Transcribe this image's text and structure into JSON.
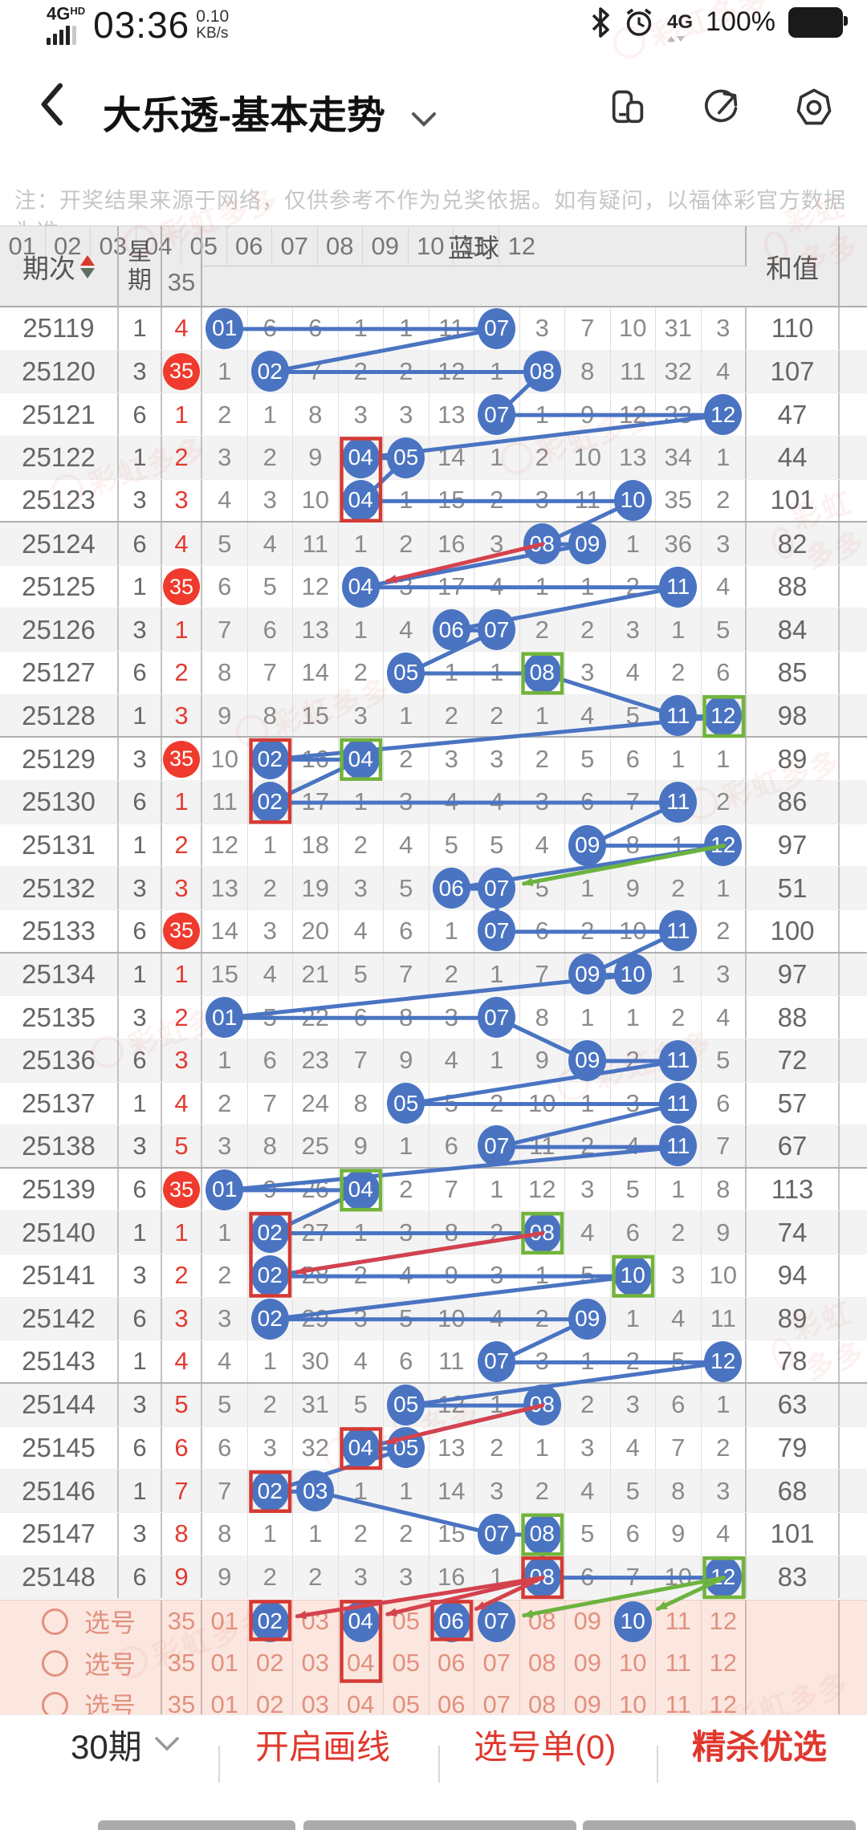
{
  "statusbar": {
    "network": "4G",
    "hd": "HD",
    "time": "03:36",
    "speed": "0.10",
    "speed_unit": "KB/s",
    "network2": "4G",
    "battery_pct": "100%"
  },
  "nav": {
    "title": "大乐透-基本走势"
  },
  "icons": {
    "back": "chevron-left",
    "title_dropdown": "chevron-down",
    "nav_right": [
      "split-screen-icon",
      "share-icon",
      "settings-icon"
    ],
    "statusbar_right": [
      "bluetooth-icon",
      "alarm-clock-icon",
      "battery-icon"
    ],
    "sort": "sort-arrows",
    "pick_radio": "circle-outline",
    "periods_dropdown": "chevron-down"
  },
  "notice": {
    "text": "注：开奖结果来源于网络，仅供参考不作为兑奖依据。如有疑问，以福体彩官方数据为准。"
  },
  "colors": {
    "ball_blue": "#4a74c2",
    "red": "#e23b30",
    "box_red": "#d43a34",
    "box_green": "#72b33c",
    "arrow_red": "#d4424d",
    "arrow_green": "#6cb33f",
    "pick_bg": "#fbe7e0",
    "pick_text": "#e2917f"
  },
  "table": {
    "header": {
      "period": "期次",
      "week": "星期",
      "group": "蓝球",
      "sum": "和值"
    },
    "columns": [
      "35",
      "01",
      "02",
      "03",
      "04",
      "05",
      "06",
      "07",
      "08",
      "09",
      "10",
      "11",
      "12"
    ],
    "rows": [
      {
        "period": "25119",
        "week": "1",
        "m35": "4",
        "balls": [
          1,
          7
        ],
        "cells": [
          null,
          "6",
          "6",
          "1",
          "1",
          "11",
          null,
          "3",
          "7",
          "10",
          "31",
          "3"
        ],
        "sum": "110"
      },
      {
        "period": "25120",
        "week": "3",
        "m35": "35",
        "balls": [
          2,
          8
        ],
        "cells": [
          "1",
          null,
          "7",
          "2",
          "2",
          "12",
          "1",
          null,
          "8",
          "11",
          "32",
          "4"
        ],
        "sum": "107"
      },
      {
        "period": "25121",
        "week": "6",
        "m35": "1",
        "balls": [
          7,
          12
        ],
        "cells": [
          "2",
          "1",
          "8",
          "3",
          "3",
          "13",
          null,
          "1",
          "9",
          "12",
          "33",
          null
        ],
        "sum": "47"
      },
      {
        "period": "25122",
        "week": "1",
        "m35": "2",
        "balls": [
          4,
          5
        ],
        "cells": [
          "3",
          "2",
          "9",
          null,
          null,
          "14",
          "1",
          "2",
          "10",
          "13",
          "34",
          "1"
        ],
        "sum": "44"
      },
      {
        "period": "25123",
        "week": "3",
        "m35": "3",
        "balls": [
          4,
          10
        ],
        "cells": [
          "4",
          "3",
          "10",
          null,
          "1",
          "15",
          "2",
          "3",
          "11",
          null,
          "35",
          "2"
        ],
        "sum": "101"
      },
      {
        "period": "25124",
        "week": "6",
        "m35": "4",
        "balls": [
          8,
          9
        ],
        "cells": [
          "5",
          "4",
          "11",
          "1",
          "2",
          "16",
          "3",
          null,
          null,
          "1",
          "36",
          "3"
        ],
        "sum": "82"
      },
      {
        "period": "25125",
        "week": "1",
        "m35": "35",
        "balls": [
          4,
          11
        ],
        "cells": [
          "6",
          "5",
          "12",
          null,
          "3",
          "17",
          "4",
          "1",
          "1",
          "2",
          null,
          "4"
        ],
        "sum": "88"
      },
      {
        "period": "25126",
        "week": "3",
        "m35": "1",
        "balls": [
          6,
          7
        ],
        "cells": [
          "7",
          "6",
          "13",
          "1",
          "4",
          null,
          null,
          "2",
          "2",
          "3",
          "1",
          "5"
        ],
        "sum": "84"
      },
      {
        "period": "25127",
        "week": "6",
        "m35": "2",
        "balls": [
          5,
          8
        ],
        "cells": [
          "8",
          "7",
          "14",
          "2",
          null,
          "1",
          "1",
          null,
          "3",
          "4",
          "2",
          "6"
        ],
        "sum": "85"
      },
      {
        "period": "25128",
        "week": "1",
        "m35": "3",
        "balls": [
          11,
          12
        ],
        "cells": [
          "9",
          "8",
          "15",
          "3",
          "1",
          "2",
          "2",
          "1",
          "4",
          "5",
          null,
          null
        ],
        "sum": "98"
      },
      {
        "period": "25129",
        "week": "3",
        "m35": "35",
        "balls": [
          2,
          4
        ],
        "cells": [
          "10",
          null,
          "16",
          null,
          "2",
          "3",
          "3",
          "2",
          "5",
          "6",
          "1",
          "1"
        ],
        "sum": "89"
      },
      {
        "period": "25130",
        "week": "6",
        "m35": "1",
        "balls": [
          2,
          11
        ],
        "cells": [
          "11",
          null,
          "17",
          "1",
          "3",
          "4",
          "4",
          "3",
          "6",
          "7",
          null,
          "2"
        ],
        "sum": "86"
      },
      {
        "period": "25131",
        "week": "1",
        "m35": "2",
        "balls": [
          9,
          12
        ],
        "cells": [
          "12",
          "1",
          "18",
          "2",
          "4",
          "5",
          "5",
          "4",
          null,
          "8",
          "1",
          null
        ],
        "sum": "97"
      },
      {
        "period": "25132",
        "week": "3",
        "m35": "3",
        "balls": [
          6,
          7
        ],
        "cells": [
          "13",
          "2",
          "19",
          "3",
          "5",
          null,
          null,
          "5",
          "1",
          "9",
          "2",
          "1"
        ],
        "sum": "51"
      },
      {
        "period": "25133",
        "week": "6",
        "m35": "35",
        "balls": [
          7,
          11
        ],
        "cells": [
          "14",
          "3",
          "20",
          "4",
          "6",
          "1",
          null,
          "6",
          "2",
          "10",
          null,
          "2"
        ],
        "sum": "100"
      },
      {
        "period": "25134",
        "week": "1",
        "m35": "1",
        "balls": [
          9,
          10
        ],
        "cells": [
          "15",
          "4",
          "21",
          "5",
          "7",
          "2",
          "1",
          "7",
          null,
          null,
          "1",
          "3"
        ],
        "sum": "97"
      },
      {
        "period": "25135",
        "week": "3",
        "m35": "2",
        "balls": [
          1,
          7
        ],
        "cells": [
          null,
          "5",
          "22",
          "6",
          "8",
          "3",
          null,
          "8",
          "1",
          "1",
          "2",
          "4"
        ],
        "sum": "88"
      },
      {
        "period": "25136",
        "week": "6",
        "m35": "3",
        "balls": [
          9,
          11
        ],
        "cells": [
          "1",
          "6",
          "23",
          "7",
          "9",
          "4",
          "1",
          "9",
          null,
          "2",
          null,
          "5"
        ],
        "sum": "72"
      },
      {
        "period": "25137",
        "week": "1",
        "m35": "4",
        "balls": [
          5,
          11
        ],
        "cells": [
          "2",
          "7",
          "24",
          "8",
          null,
          "5",
          "2",
          "10",
          "1",
          "3",
          null,
          "6"
        ],
        "sum": "57"
      },
      {
        "period": "25138",
        "week": "3",
        "m35": "5",
        "balls": [
          7,
          11
        ],
        "cells": [
          "3",
          "8",
          "25",
          "9",
          "1",
          "6",
          null,
          "11",
          "2",
          "4",
          null,
          "7"
        ],
        "sum": "67"
      },
      {
        "period": "25139",
        "week": "6",
        "m35": "35",
        "balls": [
          1,
          4
        ],
        "cells": [
          null,
          "9",
          "26",
          null,
          "2",
          "7",
          "1",
          "12",
          "3",
          "5",
          "1",
          "8"
        ],
        "sum": "113"
      },
      {
        "period": "25140",
        "week": "1",
        "m35": "1",
        "balls": [
          2,
          8
        ],
        "cells": [
          "1",
          null,
          "27",
          "1",
          "3",
          "8",
          "2",
          null,
          "4",
          "6",
          "2",
          "9"
        ],
        "sum": "74"
      },
      {
        "period": "25141",
        "week": "3",
        "m35": "2",
        "balls": [
          2,
          10
        ],
        "cells": [
          "2",
          null,
          "28",
          "2",
          "4",
          "9",
          "3",
          "1",
          "5",
          null,
          "3",
          "10"
        ],
        "sum": "94"
      },
      {
        "period": "25142",
        "week": "6",
        "m35": "3",
        "balls": [
          2,
          9
        ],
        "cells": [
          "3",
          null,
          "29",
          "3",
          "5",
          "10",
          "4",
          "2",
          null,
          "1",
          "4",
          "11"
        ],
        "sum": "89"
      },
      {
        "period": "25143",
        "week": "1",
        "m35": "4",
        "balls": [
          7,
          12
        ],
        "cells": [
          "4",
          "1",
          "30",
          "4",
          "6",
          "11",
          null,
          "3",
          "1",
          "2",
          "5",
          null
        ],
        "sum": "78"
      },
      {
        "period": "25144",
        "week": "3",
        "m35": "5",
        "balls": [
          5,
          8
        ],
        "cells": [
          "5",
          "2",
          "31",
          "5",
          null,
          "12",
          "1",
          null,
          "2",
          "3",
          "6",
          "1"
        ],
        "sum": "63"
      },
      {
        "period": "25145",
        "week": "6",
        "m35": "6",
        "balls": [
          4,
          5
        ],
        "cells": [
          "6",
          "3",
          "32",
          null,
          null,
          "13",
          "2",
          "1",
          "3",
          "4",
          "7",
          "2"
        ],
        "sum": "79"
      },
      {
        "period": "25146",
        "week": "1",
        "m35": "7",
        "balls": [
          2,
          3
        ],
        "cells": [
          "7",
          null,
          null,
          "1",
          "1",
          "14",
          "3",
          "2",
          "4",
          "5",
          "8",
          "3"
        ],
        "sum": "68"
      },
      {
        "period": "25147",
        "week": "3",
        "m35": "8",
        "balls": [
          7,
          8
        ],
        "cells": [
          "8",
          "1",
          "1",
          "2",
          "2",
          "15",
          null,
          null,
          "5",
          "6",
          "9",
          "4"
        ],
        "sum": "101"
      },
      {
        "period": "25148",
        "week": "6",
        "m35": "9",
        "balls": [
          8,
          12
        ],
        "cells": [
          "9",
          "2",
          "2",
          "3",
          "3",
          "16",
          "1",
          null,
          "6",
          "7",
          "10",
          null
        ],
        "sum": "83"
      }
    ]
  },
  "pick": {
    "label": "选号",
    "rows": [
      {
        "selected": [
          2,
          4,
          6,
          7,
          10
        ]
      },
      {
        "selected": []
      },
      {
        "selected": []
      }
    ]
  },
  "annotations": {
    "red_boxes": [
      {
        "col": 4,
        "rows": [
          "25122",
          "25123"
        ]
      },
      {
        "col": 2,
        "rows": [
          "25129",
          "25130"
        ]
      },
      {
        "col": 2,
        "rows": [
          "25140",
          "25141"
        ]
      },
      {
        "col": 4,
        "rows": [
          "25145"
        ]
      },
      {
        "col": 2,
        "rows": [
          "25146"
        ]
      },
      {
        "col": 8,
        "rows": [
          "25148"
        ]
      },
      {
        "col": 2,
        "rows": [
          "p0"
        ]
      },
      {
        "col": 4,
        "rows": [
          "p0",
          "p1"
        ]
      },
      {
        "col": 6,
        "rows": [
          "p0"
        ]
      }
    ],
    "green_boxes": [
      {
        "col": 8,
        "rows": [
          "25127"
        ]
      },
      {
        "col": 12,
        "rows": [
          "25128"
        ]
      },
      {
        "col": 4,
        "rows": [
          "25129"
        ]
      },
      {
        "col": 4,
        "rows": [
          "25139"
        ]
      },
      {
        "col": 8,
        "rows": [
          "25140"
        ]
      },
      {
        "col": 10,
        "rows": [
          "25141"
        ]
      },
      {
        "col": 8,
        "rows": [
          "25147"
        ]
      },
      {
        "col": 12,
        "rows": [
          "25148"
        ]
      }
    ],
    "red_arrows": [
      {
        "from": [
          "25124",
          8
        ],
        "to": [
          "25125",
          4
        ]
      },
      {
        "from": [
          "25140",
          8
        ],
        "to": [
          "25141",
          2
        ]
      },
      {
        "from": [
          "25144",
          8
        ],
        "to": [
          "25145",
          4
        ]
      },
      {
        "from": [
          "25148",
          8
        ],
        "to": [
          "p0",
          2
        ]
      },
      {
        "from": [
          "25148",
          8
        ],
        "to": [
          "p0",
          4
        ]
      },
      {
        "from": [
          "25148",
          8
        ],
        "to": [
          "p0",
          6
        ]
      }
    ],
    "green_arrows": [
      {
        "from": [
          "25131",
          12
        ],
        "to": [
          "25132",
          7
        ]
      },
      {
        "from": [
          "25148",
          12
        ],
        "to": [
          "p0",
          7
        ]
      },
      {
        "from": [
          "25148",
          12
        ],
        "to": [
          "p0",
          10
        ]
      }
    ]
  },
  "footer": {
    "periods_label": "30期",
    "open_draw": "开启画线",
    "pick_list": "选号单(0)",
    "premium": "精杀优选"
  },
  "watermark": "彩虹多多"
}
